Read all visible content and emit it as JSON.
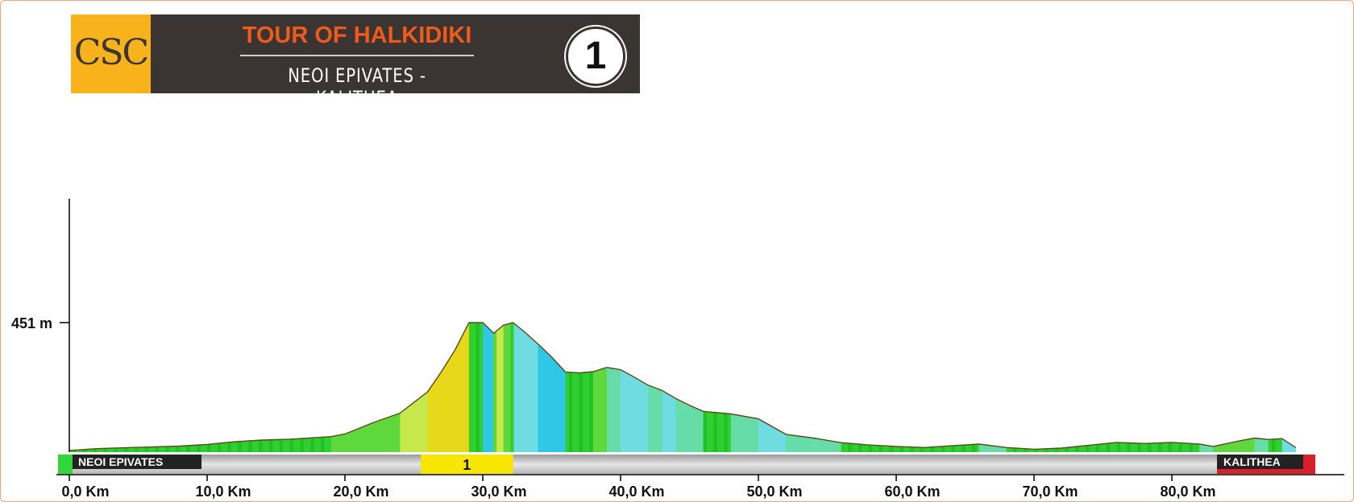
{
  "header": {
    "logo": "CSC",
    "title": "TOUR OF HALKIDIKI",
    "subtitle": "NEOI EPIVATES - KALITHEA",
    "stage_number": "1"
  },
  "chart_data": {
    "type": "area",
    "title": "",
    "xlabel": "",
    "ylabel": "",
    "x_unit": "Km",
    "y_unit": "m",
    "xlim": [
      0,
      90
    ],
    "ylim": [
      0,
      560
    ],
    "x_ticks": [
      "0,0 Km",
      "10,0 Km",
      "20,0 Km",
      "30,0 Km",
      "40,0 Km",
      "50,0 Km",
      "60,0 Km",
      "70,0 Km",
      "80,0 Km"
    ],
    "y_ticks": [
      {
        "value": 451,
        "label": "451 m"
      }
    ],
    "start_label": "NEOI EPIVATES",
    "finish_label": "KALITHEA",
    "climb": {
      "label": "1",
      "from_km": 25.5,
      "to_km": 32.2
    },
    "series": [
      {
        "x": [
          0,
          2,
          4,
          6,
          8,
          10,
          12,
          14,
          16,
          18,
          19,
          20,
          22,
          24,
          26,
          27,
          28,
          29,
          30,
          30.8,
          31.5,
          32.2,
          33,
          34,
          35,
          36,
          37,
          38,
          39,
          40,
          41,
          42,
          43,
          44,
          45,
          46,
          48,
          50,
          52,
          54,
          56,
          58,
          60,
          62,
          64,
          66,
          68,
          70,
          72,
          74,
          76,
          78,
          80,
          82,
          83,
          84,
          85,
          86,
          87,
          88,
          89
        ],
        "y": [
          6,
          12,
          15,
          18,
          21,
          27,
          36,
          42,
          45,
          51,
          54,
          63,
          102,
          136,
          210,
          280,
          357,
          451,
          451,
          414,
          442,
          451,
          420,
          377,
          331,
          279,
          276,
          280,
          295,
          287,
          261,
          233,
          215,
          187,
          163,
          142,
          133,
          116,
          62,
          49,
          33,
          25,
          20,
          16,
          22,
          28,
          16,
          10,
          14,
          24,
          34,
          30,
          34,
          28,
          20,
          30,
          40,
          49,
          44,
          47,
          16
        ]
      }
    ]
  }
}
